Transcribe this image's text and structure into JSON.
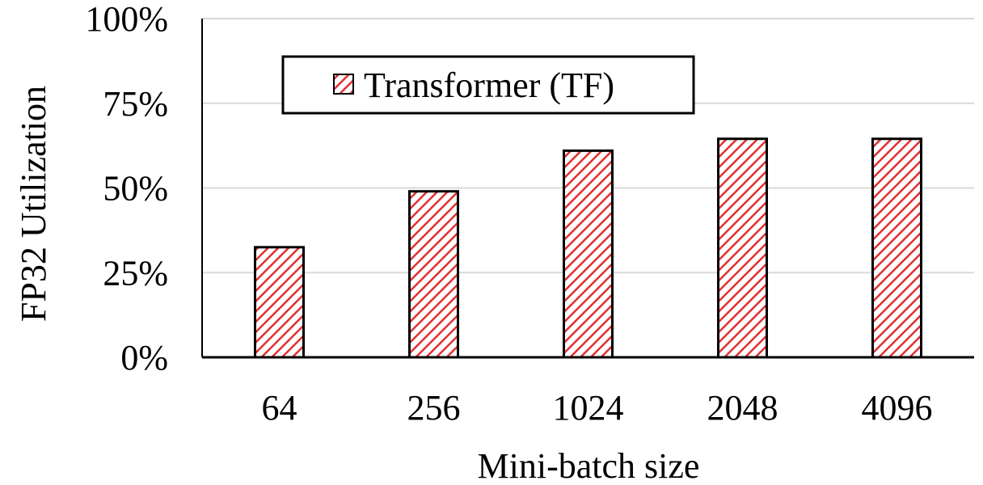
{
  "chart_data": {
    "type": "bar",
    "categories": [
      "64",
      "256",
      "1024",
      "2048",
      "4096"
    ],
    "series": [
      {
        "name": "Transformer (TF)",
        "values": [
          32.5,
          49,
          61,
          64.5,
          64.5
        ]
      }
    ],
    "xlabel": "Mini-batch size",
    "ylabel": "FP32 Utilization",
    "ylim": [
      0,
      100
    ],
    "yticks": [
      "0%",
      "25%",
      "50%",
      "75%",
      "100%"
    ],
    "grid": true,
    "legend_position": "top-left",
    "colors": {
      "bar_stripe": "#e03030",
      "bar_fill": "#ffffff",
      "bar_outline": "#000000",
      "grid": "#d9d9d9",
      "axis": "#000000"
    },
    "bar_pattern": "diagonal-hatch"
  }
}
